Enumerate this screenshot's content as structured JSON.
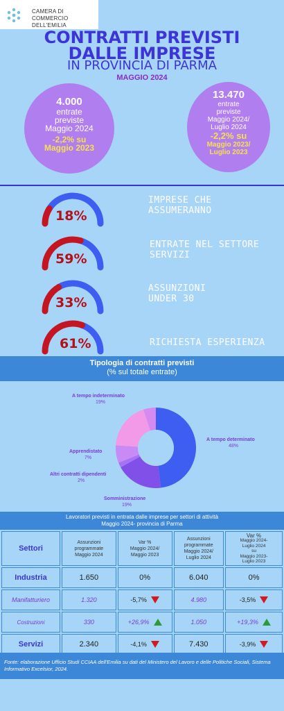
{
  "header": {
    "org_name_line1": "CAMERA DI COMMERCIO",
    "org_name_line2": "DELL'EMILIA",
    "title_line1": "CONTRATTI PREVISTI",
    "title_line2": "DALLE IMPRESE",
    "title_line3": "IN PROVINCIA DI PARMA",
    "month": "MAGGIO 2024"
  },
  "circles": [
    {
      "big": "4.000",
      "l1": "entrate",
      "l2": "previste",
      "l3": "Maggio 2024",
      "var1": "-2,2% su",
      "var2": "Maggio 2023"
    },
    {
      "big": "13.470",
      "l1": "entrate",
      "l2": "previste",
      "l3": "Maggio 2024/",
      "l4": "Luglio 2024",
      "var1": "-2,2% su",
      "var2": "Maggio 2023/",
      "var3": "Luglio 2023"
    }
  ],
  "gauges": [
    {
      "pct": "18%",
      "value": 0.18,
      "label1": "IMPRESE CHE",
      "label2": "ASSUMERANNO"
    },
    {
      "pct": "59%",
      "value": 0.59,
      "label1": "ENTRATE NEL SETTORE",
      "label2": "SERVIZI"
    },
    {
      "pct": "33%",
      "value": 0.33,
      "label1": "ASSUNZIONI",
      "label2": "UNDER 30"
    },
    {
      "pct": "61%",
      "value": 0.61,
      "label1": "RICHIESTA ESPERIENZA",
      "label2": ""
    }
  ],
  "colors": {
    "gauge_blue": "#3d5ef0",
    "gauge_red": "#c41622",
    "purple": "#b17ef0",
    "title": "#3d34d8"
  },
  "contracts": {
    "title1": "Tipologia di contratti previsti",
    "title2": "(% sul totale entrate)"
  },
  "chart_data": {
    "type": "pie",
    "slices": [
      {
        "label": "A tempo determinato",
        "value": 48,
        "display": "48%",
        "color": "#3d5ef0"
      },
      {
        "label": "Somministrazione",
        "value": 19,
        "display": "19%",
        "color": "#8050e8"
      },
      {
        "label": "Altri contratti dipendenti",
        "value": 2,
        "display": "2%",
        "color": "#a873f3"
      },
      {
        "label": "Apprendistato",
        "value": 7,
        "display": "7%",
        "color": "#c88af5"
      },
      {
        "label": "A tempo indeterminato",
        "value": 19,
        "display": "19%",
        "color": "#f29ae8"
      },
      {
        "label": "",
        "value": 5,
        "display": "",
        "color": "#d58af0"
      }
    ]
  },
  "table": {
    "heading1": "Lavoratori previsti in entrata dalle imprese per settori di attività",
    "heading2": "Maggio 2024- provincia di Parma",
    "col_sector": "Settori",
    "col_a1": "Assunzioni",
    "col_a2": "programmate",
    "col_a3": "Maggio  2024",
    "col_b1": "Var %",
    "col_b2": "Maggio 2024/",
    "col_b3": "Maggio 2023",
    "col_c1": "Assunzioni",
    "col_c2": "programmate",
    "col_c3": "Maggio 2024/",
    "col_c4": "Luglio 2024",
    "col_d1": "Var %",
    "col_d2": "Maggio 2024-",
    "col_d3": "Luglio  2024",
    "col_d4": "su",
    "col_d5": "Maggio 2023-",
    "col_d6": "Luglio 2023",
    "rows": [
      {
        "sector": "Industria",
        "a": "1.650",
        "b": "0%",
        "c": "6.040",
        "d": "0%"
      },
      {
        "sector": "Manifatturiero",
        "a": "1.320",
        "b": "-5,7%",
        "c": "4.980",
        "d": "-3,5%"
      },
      {
        "sector": "Costruzioni",
        "a": "330",
        "b": "+26,9%",
        "c": "1.050",
        "d": "+19,3%"
      },
      {
        "sector": "Servizi",
        "a": "2.340",
        "b": "-4,1%",
        "c": "7.430",
        "d": "-3,9%"
      }
    ]
  },
  "source": "Fonte: elaborazione Ufficio Studi CCIAA dell'Emilia su dati del Ministero del Lavoro e delle Politiche Sociali, Sistema Informativo Excelsior, 2024."
}
